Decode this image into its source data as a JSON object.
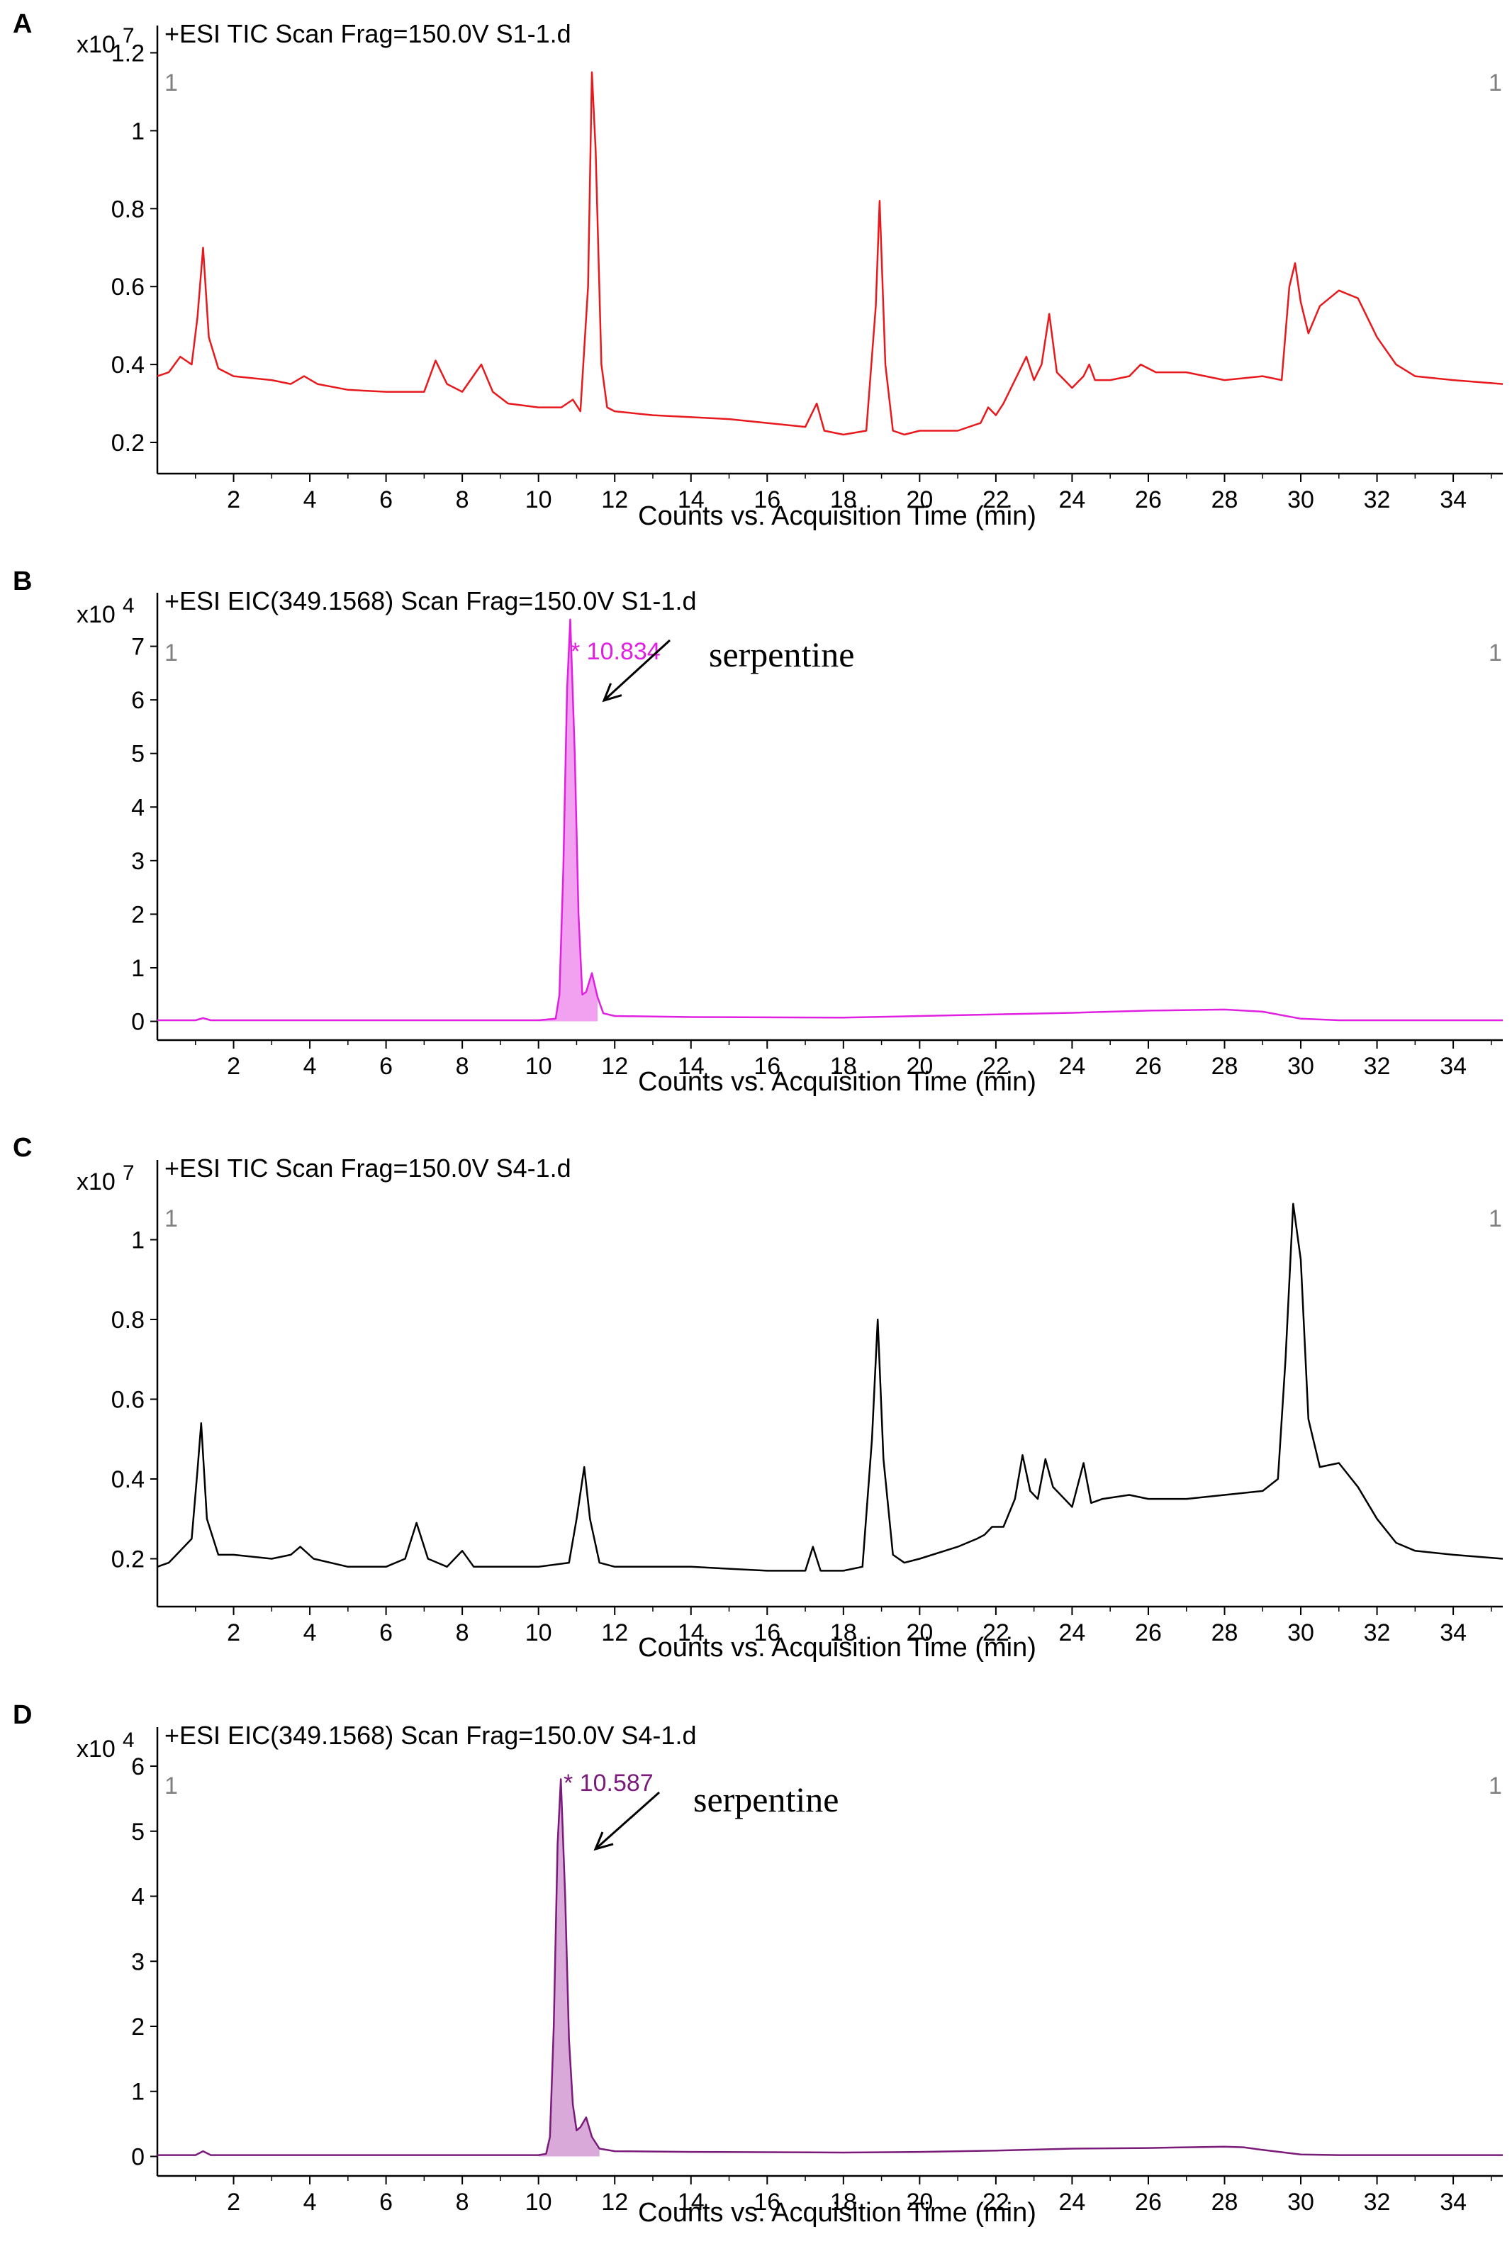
{
  "chart_data": [
    {
      "type": "line",
      "panel_label": "A",
      "title": "+ESI TIC Scan Frag=150.0V S1-1.d",
      "y_multiplier": "x10",
      "y_exponent": "7",
      "corner_left": "1",
      "corner_right": "1",
      "xlabel": "Counts vs. Acquisition Time (min)",
      "xlim": [
        0,
        35.3
      ],
      "ylim": [
        0.12,
        1.27
      ],
      "xticks": [
        "2",
        "4",
        "6",
        "8",
        "10",
        "12",
        "14",
        "16",
        "18",
        "20",
        "22",
        "24",
        "26",
        "28",
        "30",
        "32",
        "34"
      ],
      "yticks": [
        "0.2",
        "0.4",
        "0.6",
        "0.8",
        "1",
        "1.2"
      ],
      "line_color": "#e8191c",
      "fill": false,
      "series": [
        {
          "x": [
            0.0,
            0.3,
            0.6,
            0.9,
            1.05,
            1.2,
            1.35,
            1.6,
            2.0,
            3.0,
            3.5,
            3.85,
            4.2,
            5.0,
            6.0,
            7.0,
            7.3,
            7.6,
            8.0,
            8.5,
            8.8,
            9.2,
            10.0,
            10.6,
            10.9,
            11.1,
            11.3,
            11.4,
            11.5,
            11.65,
            11.8,
            12.0,
            13.0,
            15.0,
            16.0,
            17.0,
            17.3,
            17.5,
            18.0,
            18.6,
            18.85,
            18.95,
            19.1,
            19.3,
            19.6,
            20.0,
            21.0,
            21.6,
            21.8,
            22.0,
            22.2,
            22.4,
            22.6,
            22.8,
            23.0,
            23.2,
            23.4,
            23.6,
            23.8,
            24.0,
            24.3,
            24.45,
            24.6,
            25.0,
            25.5,
            25.8,
            26.2,
            27.0,
            28.0,
            29.0,
            29.5,
            29.7,
            29.85,
            30.0,
            30.2,
            30.5,
            31.0,
            31.5,
            32.0,
            32.5,
            33.0,
            34.0,
            35.3
          ],
          "y": [
            0.37,
            0.38,
            0.42,
            0.4,
            0.52,
            0.7,
            0.47,
            0.39,
            0.37,
            0.36,
            0.35,
            0.37,
            0.35,
            0.335,
            0.33,
            0.33,
            0.41,
            0.35,
            0.33,
            0.4,
            0.33,
            0.3,
            0.29,
            0.29,
            0.31,
            0.28,
            0.6,
            1.15,
            0.95,
            0.4,
            0.29,
            0.28,
            0.27,
            0.26,
            0.25,
            0.24,
            0.3,
            0.23,
            0.22,
            0.23,
            0.55,
            0.82,
            0.4,
            0.23,
            0.22,
            0.23,
            0.23,
            0.25,
            0.29,
            0.27,
            0.3,
            0.34,
            0.38,
            0.42,
            0.36,
            0.4,
            0.53,
            0.38,
            0.36,
            0.34,
            0.37,
            0.4,
            0.36,
            0.36,
            0.37,
            0.4,
            0.38,
            0.38,
            0.36,
            0.37,
            0.36,
            0.6,
            0.66,
            0.56,
            0.48,
            0.55,
            0.59,
            0.57,
            0.47,
            0.4,
            0.37,
            0.36,
            0.35
          ]
        }
      ]
    },
    {
      "type": "area",
      "panel_label": "B",
      "title": "+ESI EIC(349.1568) Scan Frag=150.0V S1-1.d",
      "y_multiplier": "x10",
      "y_exponent": "4",
      "corner_left": "1",
      "corner_right": "1",
      "xlabel": "Counts vs. Acquisition Time (min)",
      "xlim": [
        0,
        35.3
      ],
      "ylim": [
        -0.35,
        8.0
      ],
      "xticks": [
        "2",
        "4",
        "6",
        "8",
        "10",
        "12",
        "14",
        "16",
        "18",
        "20",
        "22",
        "24",
        "26",
        "28",
        "30",
        "32",
        "34"
      ],
      "yticks": [
        "0",
        "1",
        "2",
        "3",
        "4",
        "5",
        "6",
        "7"
      ],
      "line_color": "#e020e0",
      "fill_color": "#f2a0f0",
      "fill": true,
      "peak_label": "* 10.834",
      "annotation": "serpentine",
      "series": [
        {
          "x": [
            0.0,
            1.0,
            1.2,
            1.4,
            5.0,
            10.0,
            10.45,
            10.55,
            10.65,
            10.75,
            10.834,
            10.95,
            11.05,
            11.15,
            11.25,
            11.4,
            11.55,
            11.7,
            12.0,
            14.0,
            18.0,
            20.0,
            22.0,
            24.0,
            26.0,
            28.0,
            29.0,
            30.0,
            31.0,
            35.3
          ],
          "y": [
            0.02,
            0.02,
            0.06,
            0.02,
            0.02,
            0.02,
            0.05,
            0.5,
            2.8,
            6.2,
            7.5,
            5.0,
            2.0,
            0.5,
            0.55,
            0.9,
            0.45,
            0.15,
            0.1,
            0.08,
            0.07,
            0.1,
            0.13,
            0.16,
            0.2,
            0.22,
            0.18,
            0.05,
            0.02,
            0.02
          ]
        }
      ]
    },
    {
      "type": "line",
      "panel_label": "C",
      "title": "+ESI TIC Scan Frag=150.0V S4-1.d",
      "y_multiplier": "x10",
      "y_exponent": "7",
      "corner_left": "1",
      "corner_right": "1",
      "xlabel": "Counts vs. Acquisition Time (min)",
      "xlim": [
        0,
        35.3
      ],
      "ylim": [
        0.08,
        1.2
      ],
      "xticks": [
        "2",
        "4",
        "6",
        "8",
        "10",
        "12",
        "14",
        "16",
        "18",
        "20",
        "22",
        "24",
        "26",
        "28",
        "30",
        "32",
        "34"
      ],
      "yticks": [
        "0.2",
        "0.4",
        "0.6",
        "0.8",
        "1"
      ],
      "line_color": "#000000",
      "fill": false,
      "series": [
        {
          "x": [
            0.0,
            0.3,
            0.6,
            0.9,
            1.05,
            1.15,
            1.3,
            1.6,
            2.0,
            3.0,
            3.5,
            3.75,
            4.1,
            5.0,
            6.0,
            6.5,
            6.8,
            7.1,
            7.6,
            8.0,
            8.3,
            8.8,
            10.0,
            10.8,
            11.0,
            11.2,
            11.35,
            11.6,
            12.0,
            14.0,
            16.0,
            17.0,
            17.2,
            17.4,
            18.0,
            18.5,
            18.75,
            18.9,
            19.05,
            19.3,
            19.6,
            20.0,
            21.0,
            21.5,
            21.7,
            21.9,
            22.2,
            22.5,
            22.7,
            22.9,
            23.1,
            23.3,
            23.5,
            23.8,
            24.0,
            24.3,
            24.5,
            24.8,
            25.5,
            26.0,
            27.0,
            28.0,
            29.0,
            29.4,
            29.6,
            29.8,
            30.0,
            30.2,
            30.5,
            31.0,
            31.5,
            32.0,
            32.5,
            33.0,
            34.0,
            35.3
          ],
          "y": [
            0.18,
            0.19,
            0.22,
            0.25,
            0.42,
            0.54,
            0.3,
            0.21,
            0.21,
            0.2,
            0.21,
            0.23,
            0.2,
            0.18,
            0.18,
            0.2,
            0.29,
            0.2,
            0.18,
            0.22,
            0.18,
            0.18,
            0.18,
            0.19,
            0.3,
            0.43,
            0.3,
            0.19,
            0.18,
            0.18,
            0.17,
            0.17,
            0.23,
            0.17,
            0.17,
            0.18,
            0.5,
            0.8,
            0.45,
            0.21,
            0.19,
            0.2,
            0.23,
            0.25,
            0.26,
            0.28,
            0.28,
            0.35,
            0.46,
            0.37,
            0.35,
            0.45,
            0.38,
            0.35,
            0.33,
            0.44,
            0.34,
            0.35,
            0.36,
            0.35,
            0.35,
            0.36,
            0.37,
            0.4,
            0.7,
            1.09,
            0.95,
            0.55,
            0.43,
            0.44,
            0.38,
            0.3,
            0.24,
            0.22,
            0.21,
            0.2
          ]
        }
      ]
    },
    {
      "type": "area",
      "panel_label": "D",
      "title": "+ESI EIC(349.1568) Scan Frag=150.0V S4-1.d",
      "y_multiplier": "x10",
      "y_exponent": "4",
      "corner_left": "1",
      "corner_right": "1",
      "xlabel": "Counts vs. Acquisition Time (min)",
      "xlim": [
        0,
        35.3
      ],
      "ylim": [
        -0.3,
        6.6
      ],
      "xticks": [
        "2",
        "4",
        "6",
        "8",
        "10",
        "12",
        "14",
        "16",
        "18",
        "20",
        "22",
        "24",
        "26",
        "28",
        "30",
        "32",
        "34"
      ],
      "yticks": [
        "0",
        "1",
        "2",
        "3",
        "4",
        "5",
        "6"
      ],
      "line_color": "#7a1a7a",
      "fill_color": "#d9a9d9",
      "fill": true,
      "peak_label": "* 10.587",
      "annotation": "serpentine",
      "series": [
        {
          "x": [
            0.0,
            1.0,
            1.2,
            1.4,
            5.0,
            10.0,
            10.2,
            10.3,
            10.4,
            10.5,
            10.587,
            10.7,
            10.8,
            10.9,
            11.0,
            11.1,
            11.25,
            11.4,
            11.6,
            12.0,
            14.0,
            18.0,
            20.0,
            22.0,
            24.0,
            26.0,
            28.0,
            28.5,
            29.0,
            30.0,
            31.0,
            35.3
          ],
          "y": [
            0.02,
            0.02,
            0.08,
            0.02,
            0.02,
            0.02,
            0.04,
            0.3,
            2.0,
            4.8,
            5.8,
            4.0,
            1.8,
            0.8,
            0.4,
            0.45,
            0.6,
            0.3,
            0.12,
            0.08,
            0.07,
            0.06,
            0.07,
            0.09,
            0.12,
            0.13,
            0.15,
            0.14,
            0.1,
            0.03,
            0.02,
            0.02
          ]
        }
      ]
    }
  ]
}
